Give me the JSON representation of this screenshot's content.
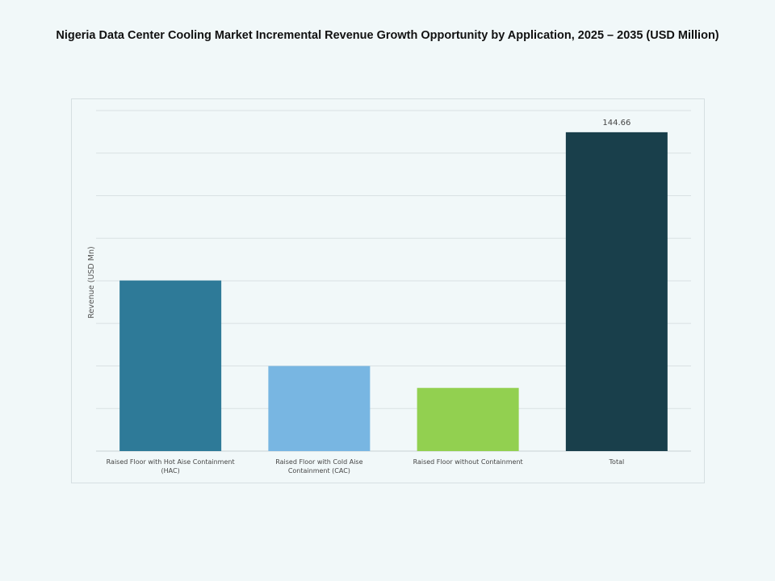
{
  "chart_data": {
    "type": "bar",
    "title": "Nigeria Data Center Cooling Market Incremental Revenue Growth Opportunity by Application, 2025 – 2035 (USD Million)",
    "xlabel": "",
    "ylabel": "Revenue (USD Mn)",
    "categories": [
      [
        "Raised Floor with Hot Aise Containment",
        "(HAC)"
      ],
      [
        "Raised Floor with Cold Aise",
        "Containment (CAC)"
      ],
      [
        "Raised Floor without Containment"
      ],
      [
        "Total"
      ]
    ],
    "values": [
      77.4,
      38.6,
      28.66,
      144.66
    ],
    "data_labels": [
      "",
      "",
      "",
      "144.66"
    ],
    "colors": [
      "#2e7a98",
      "#78b6e2",
      "#92d050",
      "#193f4b"
    ],
    "ylim": [
      0,
      154.5
    ],
    "grid": true,
    "y_tick_labels_shown": false
  }
}
